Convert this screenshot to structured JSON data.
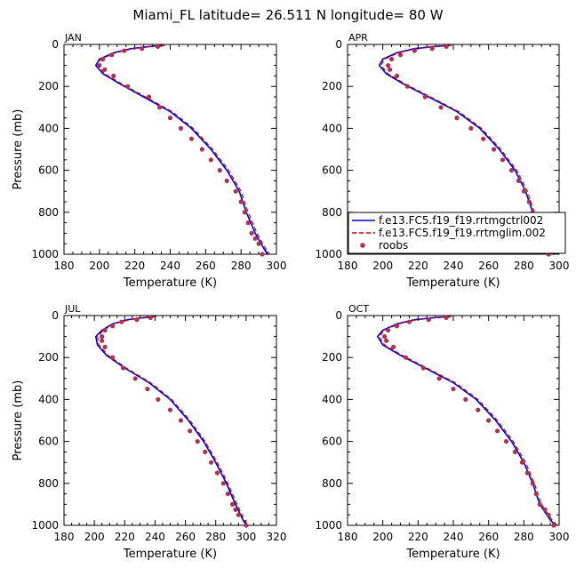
{
  "figure": {
    "title": "Miami_FL  latitude= 26.511 N longitude= 80 W"
  },
  "chart_data": [
    {
      "type": "line",
      "panel": "JAN",
      "xlabel": "Temperature (K)",
      "ylabel": "Pressure (mb)",
      "xlim": [
        180,
        300
      ],
      "ylim": [
        1000,
        0
      ],
      "x_ticks": [
        180,
        200,
        220,
        240,
        260,
        280,
        300
      ],
      "y_ticks": [
        0,
        200,
        400,
        600,
        800,
        1000
      ],
      "series": [
        {
          "name": "f.e13.FC5.f19_f19.rrtmgctrl002",
          "color": "#0000cc",
          "style": "solid",
          "x": [
            236,
            228,
            218,
            208,
            200,
            198,
            202,
            212,
            225,
            240,
            252,
            263,
            272,
            279,
            283,
            288,
            293,
            295
          ],
          "y": [
            5,
            10,
            20,
            40,
            70,
            100,
            140,
            190,
            250,
            320,
            400,
            500,
            600,
            700,
            800,
            900,
            975,
            1000
          ]
        },
        {
          "name": "f.e13.FC5.f19_f19.rrtmglim.002",
          "color": "#cc0000",
          "style": "dashed",
          "x": [
            237,
            229,
            219,
            209,
            201,
            199,
            203,
            213,
            226,
            241,
            253,
            264,
            273,
            280,
            284,
            289,
            294,
            296
          ],
          "y": [
            5,
            10,
            20,
            40,
            70,
            100,
            140,
            190,
            250,
            320,
            400,
            500,
            600,
            700,
            800,
            900,
            975,
            1000
          ]
        },
        {
          "name": "roobs",
          "color": "#aa3355",
          "style": "points",
          "x": [
            233,
            224,
            214,
            207,
            202,
            200,
            203,
            208,
            216,
            228,
            234,
            240,
            246,
            252,
            258,
            263,
            268,
            272,
            277,
            280,
            282,
            284,
            286,
            288,
            290,
            292
          ],
          "y": [
            10,
            20,
            30,
            50,
            70,
            100,
            120,
            150,
            200,
            250,
            300,
            350,
            400,
            450,
            500,
            550,
            600,
            650,
            700,
            750,
            800,
            850,
            900,
            925,
            950,
            1000
          ]
        }
      ]
    },
    {
      "type": "line",
      "panel": "APR",
      "xlabel": "Temperature (K)",
      "ylabel": "",
      "xlim": [
        180,
        300
      ],
      "ylim": [
        1000,
        0
      ],
      "x_ticks": [
        180,
        200,
        220,
        240,
        260,
        280,
        300
      ],
      "y_ticks": [
        0,
        200,
        400,
        600,
        800,
        1000
      ],
      "legend": {
        "placement": "lower-right",
        "entries": [
          "f.e13.FC5.f19_f19.rrtmgctrl002",
          "f.e13.FC5.f19_f19.rrtmglim.002",
          "roobs"
        ]
      },
      "series": [
        {
          "name": "f.e13.FC5.f19_f19.rrtmgctrl002",
          "color": "#0000cc",
          "style": "solid",
          "x": [
            238,
            229,
            218,
            208,
            200,
            198,
            202,
            212,
            226,
            242,
            255,
            266,
            275,
            281,
            285,
            289,
            293,
            295
          ],
          "y": [
            5,
            10,
            20,
            40,
            70,
            100,
            140,
            190,
            250,
            320,
            400,
            500,
            600,
            700,
            800,
            900,
            975,
            1000
          ]
        },
        {
          "name": "f.e13.FC5.f19_f19.rrtmglim.002",
          "color": "#cc0000",
          "style": "dashed",
          "x": [
            239,
            230,
            219,
            209,
            201,
            199,
            203,
            213,
            227,
            243,
            256,
            267,
            276,
            282,
            286,
            290,
            294,
            296
          ],
          "y": [
            5,
            10,
            20,
            40,
            70,
            100,
            140,
            190,
            250,
            320,
            400,
            500,
            600,
            700,
            800,
            900,
            975,
            1000
          ]
        },
        {
          "name": "roobs",
          "color": "#aa3355",
          "style": "points",
          "x": [
            236,
            228,
            218,
            210,
            205,
            203,
            204,
            208,
            214,
            224,
            233,
            242,
            250,
            257,
            263,
            268,
            273,
            277,
            280,
            283,
            285,
            287,
            288,
            290,
            291,
            294
          ],
          "y": [
            10,
            20,
            30,
            50,
            70,
            100,
            120,
            150,
            200,
            250,
            300,
            350,
            400,
            450,
            500,
            550,
            600,
            650,
            700,
            750,
            800,
            850,
            900,
            925,
            950,
            1000
          ]
        }
      ]
    },
    {
      "type": "line",
      "panel": "JUL",
      "xlabel": "Temperature (K)",
      "ylabel": "Pressure (mb)",
      "xlim": [
        180,
        320
      ],
      "ylim": [
        1000,
        0
      ],
      "x_ticks": [
        180,
        200,
        220,
        240,
        260,
        280,
        300,
        320
      ],
      "y_ticks": [
        0,
        200,
        400,
        600,
        800,
        1000
      ],
      "series": [
        {
          "name": "f.e13.FC5.f19_f19.rrtmgctrl002",
          "color": "#0000cc",
          "style": "solid",
          "x": [
            240,
            232,
            222,
            212,
            205,
            201,
            202,
            208,
            220,
            236,
            250,
            262,
            272,
            280,
            287,
            293,
            298,
            300
          ],
          "y": [
            5,
            10,
            20,
            40,
            70,
            100,
            140,
            190,
            250,
            320,
            400,
            500,
            600,
            700,
            800,
            900,
            975,
            1000
          ]
        },
        {
          "name": "f.e13.FC5.f19_f19.rrtmglim.002",
          "color": "#cc0000",
          "style": "dashed",
          "x": [
            241,
            233,
            223,
            213,
            206,
            202,
            203,
            209,
            221,
            237,
            251,
            263,
            273,
            281,
            288,
            294,
            299,
            301
          ],
          "y": [
            5,
            10,
            20,
            40,
            70,
            100,
            140,
            190,
            250,
            320,
            400,
            500,
            600,
            700,
            800,
            900,
            975,
            1000
          ]
        },
        {
          "name": "roobs",
          "color": "#aa3355",
          "style": "points",
          "x": [
            237,
            228,
            218,
            212,
            207,
            205,
            205,
            207,
            212,
            219,
            227,
            235,
            242,
            250,
            257,
            263,
            268,
            273,
            277,
            281,
            285,
            288,
            291,
            293,
            295,
            300
          ],
          "y": [
            10,
            20,
            30,
            50,
            70,
            100,
            120,
            150,
            200,
            250,
            300,
            350,
            400,
            450,
            500,
            550,
            600,
            650,
            700,
            750,
            800,
            850,
            900,
            925,
            950,
            1000
          ]
        }
      ]
    },
    {
      "type": "line",
      "panel": "OCT",
      "xlabel": "Temperature (K)",
      "ylabel": "",
      "xlim": [
        180,
        300
      ],
      "ylim": [
        1000,
        0
      ],
      "x_ticks": [
        180,
        200,
        220,
        240,
        260,
        280,
        300
      ],
      "y_ticks": [
        0,
        200,
        400,
        600,
        800,
        1000
      ],
      "series": [
        {
          "name": "f.e13.FC5.f19_f19.rrtmgctrl002",
          "color": "#0000cc",
          "style": "solid",
          "x": [
            238,
            229,
            218,
            208,
            200,
            197,
            200,
            210,
            224,
            240,
            253,
            264,
            273,
            280,
            285,
            289,
            295,
            298
          ],
          "y": [
            5,
            10,
            20,
            40,
            70,
            100,
            140,
            190,
            250,
            320,
            400,
            500,
            600,
            700,
            800,
            900,
            975,
            1000
          ]
        },
        {
          "name": "f.e13.FC5.f19_f19.rrtmglim.002",
          "color": "#cc0000",
          "style": "dashed",
          "x": [
            239,
            230,
            219,
            209,
            201,
            198,
            201,
            211,
            225,
            241,
            254,
            265,
            274,
            281,
            286,
            290,
            296,
            299
          ],
          "y": [
            5,
            10,
            20,
            40,
            70,
            100,
            140,
            190,
            250,
            320,
            400,
            500,
            600,
            700,
            800,
            900,
            975,
            1000
          ]
        },
        {
          "name": "roobs",
          "color": "#aa3355",
          "style": "points",
          "x": [
            236,
            226,
            215,
            208,
            203,
            201,
            202,
            206,
            213,
            223,
            232,
            240,
            247,
            254,
            260,
            265,
            270,
            275,
            279,
            282,
            285,
            287,
            289,
            292,
            294,
            297
          ],
          "y": [
            10,
            20,
            30,
            50,
            70,
            100,
            120,
            150,
            200,
            250,
            300,
            350,
            400,
            450,
            500,
            550,
            600,
            650,
            700,
            750,
            800,
            850,
            900,
            925,
            950,
            1000
          ]
        }
      ]
    }
  ]
}
